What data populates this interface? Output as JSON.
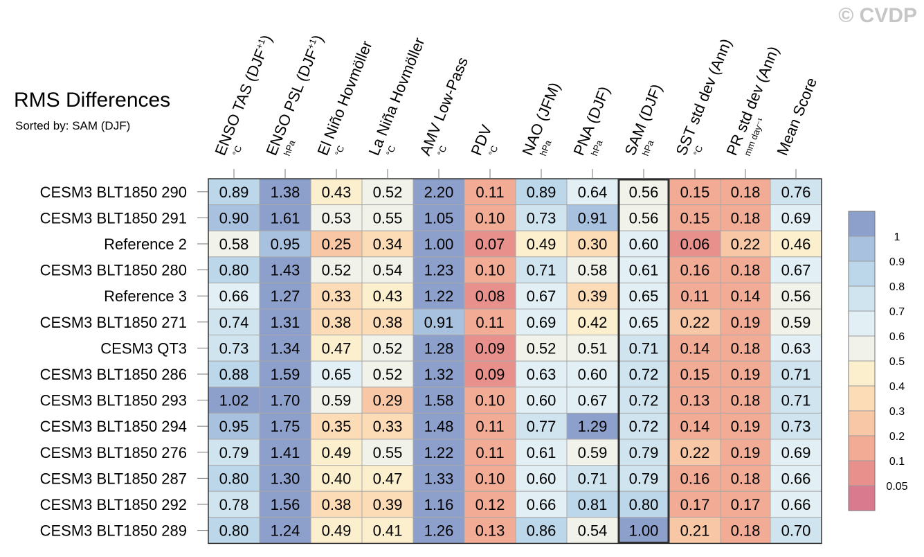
{
  "copyright": "© CVDP",
  "chart_data": {
    "type": "heatmap",
    "title": "RMS Differences",
    "subtitle": "Sorted by: SAM (DJF)",
    "highlight_column": 8,
    "columns": [
      {
        "label": "ENSO TAS (DJF",
        "sup": "+1",
        "close": ")",
        "unit": "°C"
      },
      {
        "label": "ENSO PSL (DJF",
        "sup": "+1",
        "close": ")",
        "unit": "hPa"
      },
      {
        "label": "El Niño Hovmöller",
        "sup": "",
        "close": "",
        "unit": "°C"
      },
      {
        "label": "La Niña Hovmöller",
        "sup": "",
        "close": "",
        "unit": "°C"
      },
      {
        "label": "AMV Low-Pass",
        "sup": "",
        "close": "",
        "unit": "°C"
      },
      {
        "label": "PDV",
        "sup": "",
        "close": "",
        "unit": "°C"
      },
      {
        "label": "NAO (JFM)",
        "sup": "",
        "close": "",
        "unit": "hPa"
      },
      {
        "label": "PNA (DJF)",
        "sup": "",
        "close": "",
        "unit": "hPa"
      },
      {
        "label": "SAM (DJF)",
        "sup": "",
        "close": "",
        "unit": "hPa"
      },
      {
        "label": "SST std dev (Ann)",
        "sup": "",
        "close": "",
        "unit": "°C"
      },
      {
        "label": "PR std dev (Ann)",
        "sup": "",
        "close": "",
        "unit": "mm day⁻¹"
      },
      {
        "label": "Mean Score",
        "sup": "",
        "close": "",
        "unit": ""
      }
    ],
    "rows": [
      {
        "label": "CESM3 BLT1850 290",
        "values": [
          "0.89",
          "1.38",
          "0.43",
          "0.52",
          "2.20",
          "0.11",
          "0.89",
          "0.64",
          "0.56",
          "0.15",
          "0.18",
          "0.76"
        ]
      },
      {
        "label": "CESM3 BLT1850 291",
        "values": [
          "0.90",
          "1.61",
          "0.53",
          "0.55",
          "1.05",
          "0.10",
          "0.73",
          "0.91",
          "0.56",
          "0.15",
          "0.18",
          "0.69"
        ]
      },
      {
        "label": "Reference 2",
        "values": [
          "0.58",
          "0.95",
          "0.25",
          "0.34",
          "1.00",
          "0.07",
          "0.49",
          "0.30",
          "0.60",
          "0.06",
          "0.22",
          "0.46"
        ]
      },
      {
        "label": "CESM3 BLT1850 280",
        "values": [
          "0.80",
          "1.43",
          "0.52",
          "0.54",
          "1.23",
          "0.10",
          "0.71",
          "0.58",
          "0.61",
          "0.16",
          "0.18",
          "0.67"
        ]
      },
      {
        "label": "Reference 3",
        "values": [
          "0.66",
          "1.27",
          "0.33",
          "0.43",
          "1.22",
          "0.08",
          "0.67",
          "0.39",
          "0.65",
          "0.11",
          "0.14",
          "0.56"
        ]
      },
      {
        "label": "CESM3 BLT1850 271",
        "values": [
          "0.74",
          "1.31",
          "0.38",
          "0.38",
          "0.91",
          "0.11",
          "0.69",
          "0.42",
          "0.65",
          "0.22",
          "0.19",
          "0.59"
        ]
      },
      {
        "label": "CESM3 QT3",
        "values": [
          "0.73",
          "1.34",
          "0.47",
          "0.52",
          "1.28",
          "0.09",
          "0.52",
          "0.51",
          "0.71",
          "0.14",
          "0.18",
          "0.63"
        ]
      },
      {
        "label": "CESM3 BLT1850 286",
        "values": [
          "0.88",
          "1.59",
          "0.65",
          "0.52",
          "1.32",
          "0.09",
          "0.63",
          "0.60",
          "0.72",
          "0.15",
          "0.19",
          "0.71"
        ]
      },
      {
        "label": "CESM3 BLT1850 293",
        "values": [
          "1.02",
          "1.70",
          "0.59",
          "0.29",
          "1.58",
          "0.10",
          "0.60",
          "0.67",
          "0.72",
          "0.13",
          "0.18",
          "0.71"
        ]
      },
      {
        "label": "CESM3 BLT1850 294",
        "values": [
          "0.95",
          "1.75",
          "0.35",
          "0.33",
          "1.48",
          "0.11",
          "0.77",
          "1.29",
          "0.72",
          "0.14",
          "0.19",
          "0.73"
        ]
      },
      {
        "label": "CESM3 BLT1850 276",
        "values": [
          "0.79",
          "1.41",
          "0.49",
          "0.55",
          "1.22",
          "0.11",
          "0.61",
          "0.59",
          "0.79",
          "0.22",
          "0.19",
          "0.69"
        ]
      },
      {
        "label": "CESM3 BLT1850 287",
        "values": [
          "0.80",
          "1.30",
          "0.40",
          "0.47",
          "1.33",
          "0.10",
          "0.60",
          "0.71",
          "0.79",
          "0.16",
          "0.18",
          "0.66"
        ]
      },
      {
        "label": "CESM3 BLT1850 292",
        "values": [
          "0.78",
          "1.56",
          "0.38",
          "0.39",
          "1.16",
          "0.12",
          "0.66",
          "0.81",
          "0.80",
          "0.17",
          "0.17",
          "0.66"
        ]
      },
      {
        "label": "CESM3 BLT1850 289",
        "values": [
          "0.80",
          "1.24",
          "0.49",
          "0.41",
          "1.26",
          "0.13",
          "0.86",
          "0.54",
          "1.00",
          "0.21",
          "0.18",
          "0.70"
        ]
      }
    ],
    "colorbar": {
      "labels": [
        "1",
        "0.9",
        "0.8",
        "0.7",
        "0.6",
        "0.5",
        "0.4",
        "0.3",
        "0.2",
        "0.1",
        "0.05"
      ],
      "colors": [
        "#8da0cb",
        "#a8c1de",
        "#bcd6ea",
        "#cfe4ef",
        "#e2f0f5",
        "#f1f3ea",
        "#fbefcd",
        "#fcdcb6",
        "#f8c8a6",
        "#f2ab95",
        "#e7908c",
        "#d97a8f"
      ]
    }
  }
}
